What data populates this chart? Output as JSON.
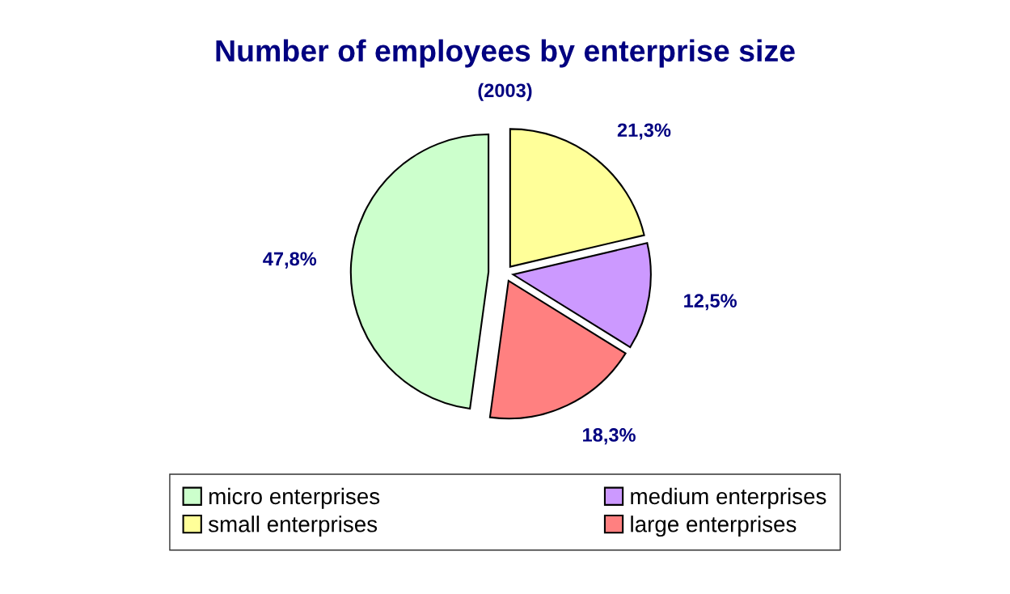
{
  "chart_data": {
    "type": "pie",
    "title": "Number of employees by enterprise size",
    "subtitle": "(2003)",
    "categories": [
      "micro enterprises",
      "small enterprises",
      "medium enterprises",
      "large enterprises"
    ],
    "values": [
      47.8,
      21.3,
      12.5,
      18.3
    ],
    "value_labels": [
      "47,8%",
      "21,3%",
      "12,5%",
      "18,3%"
    ],
    "colors": [
      "#ccffcc",
      "#ffff99",
      "#cc99ff",
      "#ff8080"
    ],
    "legend": "bottom"
  }
}
